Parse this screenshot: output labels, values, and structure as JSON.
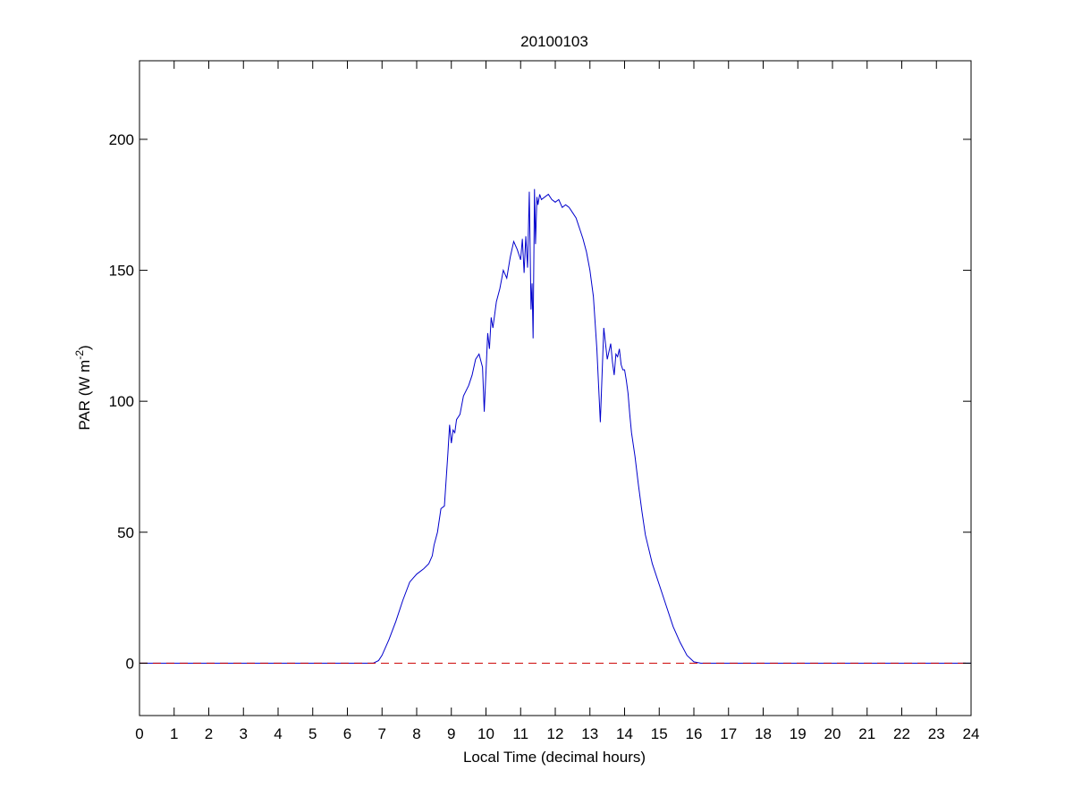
{
  "chart_data": {
    "type": "line",
    "title": "20100103",
    "xlabel": "Local Time (decimal hours)",
    "ylabel": {
      "prefix": "PAR (W m",
      "superscript": "-2",
      "suffix": ")"
    },
    "xlim": [
      0,
      24
    ],
    "ylim": [
      -20,
      230
    ],
    "xticks": [
      0,
      1,
      2,
      3,
      4,
      5,
      6,
      7,
      8,
      9,
      10,
      11,
      12,
      13,
      14,
      15,
      16,
      17,
      18,
      19,
      20,
      21,
      22,
      23,
      24
    ],
    "xtick_labels": [
      "0",
      "1",
      "2",
      "3",
      "4",
      "5",
      "6",
      "7",
      "8",
      "9",
      "10",
      "11",
      "12",
      "13",
      "14",
      "15",
      "16",
      "17",
      "18",
      "19",
      "20",
      "21",
      "22",
      "23",
      "24"
    ],
    "yticks": [
      0,
      50,
      100,
      150,
      200
    ],
    "ytick_labels": [
      "0",
      "50",
      "100",
      "150",
      "200"
    ],
    "grid": false,
    "series": [
      {
        "style": "solid",
        "color": "#0000cc",
        "x": [
          0,
          6.75,
          6.9,
          7.0,
          7.2,
          7.4,
          7.6,
          7.8,
          8.0,
          8.2,
          8.35,
          8.45,
          8.5,
          8.6,
          8.7,
          8.8,
          8.85,
          8.9,
          8.95,
          9.0,
          9.05,
          9.1,
          9.15,
          9.25,
          9.35,
          9.5,
          9.6,
          9.7,
          9.8,
          9.9,
          9.95,
          10.0,
          10.05,
          10.1,
          10.15,
          10.2,
          10.3,
          10.4,
          10.5,
          10.6,
          10.7,
          10.8,
          10.9,
          11.0,
          11.05,
          11.1,
          11.15,
          11.2,
          11.25,
          11.3,
          11.33,
          11.36,
          11.4,
          11.43,
          11.47,
          11.5,
          11.55,
          11.6,
          11.7,
          11.8,
          11.9,
          12.0,
          12.1,
          12.2,
          12.3,
          12.4,
          12.5,
          12.6,
          12.7,
          12.8,
          12.9,
          13.0,
          13.1,
          13.2,
          13.3,
          13.4,
          13.5,
          13.6,
          13.65,
          13.7,
          13.75,
          13.8,
          13.85,
          13.9,
          13.95,
          14.0,
          14.05,
          14.1,
          14.15,
          14.2,
          14.3,
          14.4,
          14.5,
          14.6,
          14.8,
          15.0,
          15.2,
          15.4,
          15.6,
          15.8,
          16.0,
          16.2,
          16.4,
          16.6,
          16.8,
          17.0,
          17.2,
          17.4,
          24
        ],
        "y": [
          0,
          0,
          1,
          3,
          9,
          16,
          24,
          31,
          34,
          36,
          38,
          41,
          45,
          50,
          59,
          60,
          70,
          80,
          91,
          84,
          89,
          88,
          93,
          95,
          102,
          106,
          110,
          116,
          118,
          113,
          96,
          111,
          126,
          120,
          132,
          128,
          138,
          143,
          150,
          147,
          155,
          161,
          158,
          154,
          162,
          149,
          163,
          151,
          180,
          135,
          145,
          124,
          181,
          160,
          178,
          175,
          179,
          177,
          178,
          179,
          177,
          176,
          177,
          174,
          175,
          174,
          172,
          170,
          166,
          162,
          157,
          150,
          140,
          120,
          92,
          128,
          116,
          122,
          115,
          110,
          118,
          117,
          120,
          114,
          112,
          112,
          108,
          103,
          95,
          88,
          79,
          68,
          58,
          49,
          38,
          30,
          22,
          14,
          8,
          3,
          0.5,
          0,
          0,
          0,
          0,
          0,
          0,
          0,
          0
        ]
      },
      {
        "style": "dashed",
        "color": "#cc0000",
        "x": [
          0,
          24
        ],
        "y": [
          0,
          0
        ]
      }
    ]
  }
}
